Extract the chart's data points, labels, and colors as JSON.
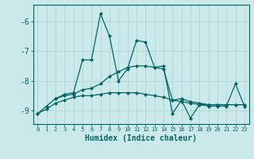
{
  "xlabel": "Humidex (Indice chaleur)",
  "bg_color": "#cce9e9",
  "grid_color": "#b0d8d8",
  "line_color": "#006666",
  "xlim": [
    -0.5,
    23.5
  ],
  "ylim": [
    -9.45,
    -5.45
  ],
  "yticks": [
    -9,
    -8,
    -7,
    -6
  ],
  "xticks": [
    0,
    1,
    2,
    3,
    4,
    5,
    6,
    7,
    8,
    9,
    10,
    11,
    12,
    13,
    14,
    15,
    16,
    17,
    18,
    19,
    20,
    21,
    22,
    23
  ],
  "series": [
    [
      -9.1,
      -8.85,
      -8.6,
      -8.45,
      -8.4,
      -7.3,
      -7.3,
      -5.75,
      -6.5,
      -8.0,
      -7.6,
      -6.65,
      -6.7,
      -7.55,
      -7.5,
      -9.1,
      -8.65,
      -9.25,
      -8.8,
      -8.85,
      -8.85,
      -8.85,
      -8.1,
      -8.85
    ],
    [
      null,
      null,
      -8.6,
      -8.5,
      -8.45,
      -8.3,
      -8.25,
      -8.1,
      -7.85,
      -7.7,
      -7.55,
      -7.5,
      -7.5,
      -7.55,
      -7.6,
      -8.65,
      -8.6,
      -8.7,
      -8.75,
      -8.8,
      -8.8,
      -8.8,
      -8.8,
      -8.8
    ],
    [
      -9.1,
      -8.95,
      -8.75,
      -8.65,
      -8.55,
      -8.5,
      -8.5,
      -8.45,
      -8.4,
      -8.4,
      -8.4,
      -8.4,
      -8.45,
      -8.5,
      -8.55,
      -8.65,
      -8.7,
      -8.75,
      -8.8,
      -8.8,
      -8.8,
      -8.8,
      -8.8,
      -8.8
    ]
  ]
}
